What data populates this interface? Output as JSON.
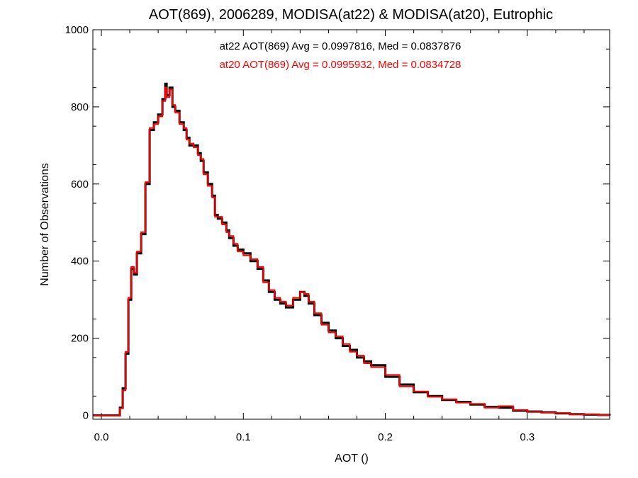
{
  "chart_data": {
    "type": "line",
    "title": "AOT(869), 2006289, MODISA(at22) & MODISA(at20), Eutrophic",
    "xlabel": "AOT ()",
    "ylabel": "Number of Observations",
    "xlim": [
      -0.006,
      0.358
    ],
    "ylim": [
      -10,
      1000
    ],
    "x_ticks": [
      0.0,
      0.1,
      0.2,
      0.3
    ],
    "x_tick_labels": [
      "0.0",
      "0.1",
      "0.2",
      "0.3"
    ],
    "y_ticks": [
      0,
      200,
      400,
      600,
      800,
      1000
    ],
    "y_tick_labels": [
      "0",
      "200",
      "400",
      "600",
      "800",
      "1000"
    ],
    "grid": false,
    "annotations": [
      {
        "text": "at22 AOT(869) Avg = 0.0997816, Med = 0.0837876",
        "color": "#000000"
      },
      {
        "text": "at20 AOT(869) Avg = 0.0995932, Med = 0.0834728",
        "color": "#ff0000"
      }
    ],
    "series": [
      {
        "color": "#000000",
        "x": [
          -0.006,
          0.012,
          0.013,
          0.015,
          0.017,
          0.019,
          0.021,
          0.023,
          0.025,
          0.028,
          0.031,
          0.034,
          0.037,
          0.04,
          0.043,
          0.045,
          0.046,
          0.048,
          0.05,
          0.052,
          0.055,
          0.058,
          0.06,
          0.062,
          0.065,
          0.068,
          0.07,
          0.072,
          0.075,
          0.078,
          0.08,
          0.082,
          0.085,
          0.088,
          0.09,
          0.093,
          0.096,
          0.1,
          0.105,
          0.11,
          0.114,
          0.118,
          0.122,
          0.126,
          0.13,
          0.135,
          0.14,
          0.143,
          0.146,
          0.15,
          0.155,
          0.16,
          0.165,
          0.17,
          0.175,
          0.18,
          0.185,
          0.19,
          0.2,
          0.21,
          0.22,
          0.23,
          0.24,
          0.25,
          0.26,
          0.27,
          0.28,
          0.29,
          0.3,
          0.31,
          0.32,
          0.33,
          0.34,
          0.35,
          0.358
        ],
        "y": [
          0,
          0,
          20,
          70,
          160,
          300,
          380,
          365,
          420,
          470,
          600,
          740,
          760,
          780,
          820,
          860,
          830,
          850,
          800,
          790,
          760,
          740,
          720,
          700,
          700,
          680,
          660,
          630,
          600,
          570,
          520,
          510,
          500,
          480,
          460,
          440,
          430,
          420,
          400,
          380,
          350,
          320,
          300,
          290,
          280,
          300,
          320,
          310,
          290,
          260,
          240,
          220,
          200,
          180,
          170,
          150,
          140,
          130,
          100,
          80,
          60,
          50,
          40,
          35,
          28,
          22,
          20,
          12,
          10,
          8,
          5,
          3,
          2,
          1,
          0
        ]
      },
      {
        "color": "#ff0000",
        "x": [
          -0.006,
          0.012,
          0.013,
          0.015,
          0.017,
          0.019,
          0.021,
          0.023,
          0.025,
          0.028,
          0.031,
          0.034,
          0.037,
          0.04,
          0.043,
          0.045,
          0.046,
          0.048,
          0.05,
          0.052,
          0.055,
          0.058,
          0.06,
          0.062,
          0.065,
          0.068,
          0.07,
          0.072,
          0.075,
          0.078,
          0.08,
          0.082,
          0.085,
          0.088,
          0.09,
          0.093,
          0.096,
          0.1,
          0.105,
          0.11,
          0.114,
          0.118,
          0.122,
          0.126,
          0.13,
          0.135,
          0.14,
          0.143,
          0.146,
          0.15,
          0.155,
          0.16,
          0.165,
          0.17,
          0.175,
          0.18,
          0.185,
          0.19,
          0.2,
          0.21,
          0.22,
          0.23,
          0.24,
          0.25,
          0.26,
          0.27,
          0.28,
          0.29,
          0.3,
          0.31,
          0.32,
          0.33,
          0.34,
          0.35,
          0.358
        ],
        "y": [
          0,
          0,
          18,
          65,
          165,
          305,
          385,
          370,
          425,
          475,
          605,
          745,
          755,
          775,
          815,
          850,
          825,
          845,
          805,
          785,
          755,
          745,
          715,
          705,
          695,
          675,
          665,
          625,
          595,
          565,
          515,
          515,
          495,
          475,
          465,
          445,
          425,
          415,
          405,
          385,
          345,
          325,
          305,
          295,
          285,
          305,
          320,
          315,
          295,
          265,
          235,
          215,
          205,
          185,
          165,
          155,
          135,
          125,
          105,
          75,
          62,
          48,
          42,
          33,
          30,
          20,
          24,
          14,
          9,
          7,
          6,
          2,
          3,
          1,
          0
        ]
      }
    ]
  }
}
